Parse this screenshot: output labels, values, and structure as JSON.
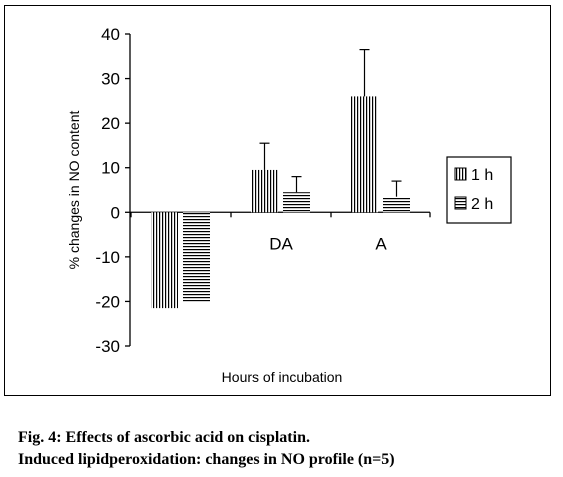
{
  "chart_data": {
    "type": "bar",
    "title": "",
    "xlabel": "Hours of incubation",
    "ylabel": "% changes in NO content",
    "ylim": [
      -30,
      40
    ],
    "yticks": [
      -30,
      -20,
      -10,
      0,
      10,
      20,
      30,
      40
    ],
    "ytick_labels": [
      "-30",
      "-20",
      "-10",
      "0",
      "10",
      "20",
      "30",
      "40"
    ],
    "categories": [
      "",
      "DA",
      "A"
    ],
    "series": [
      {
        "name": "1 h",
        "pattern": "vertical-lines",
        "values": [
          -21.5,
          9.5,
          26
        ],
        "error": [
          0,
          6,
          10.5
        ]
      },
      {
        "name": "2 h",
        "pattern": "horizontal-lines",
        "values": [
          -20,
          4.5,
          3.5
        ],
        "error": [
          0,
          3.5,
          3.5
        ]
      }
    ],
    "legend_position": "right",
    "grid": false
  },
  "caption": {
    "line1": "Fig. 4: Effects of ascorbic acid on cisplatin.",
    "line2": "Induced lipidperoxidation: changes in NO profile (n=5)"
  }
}
